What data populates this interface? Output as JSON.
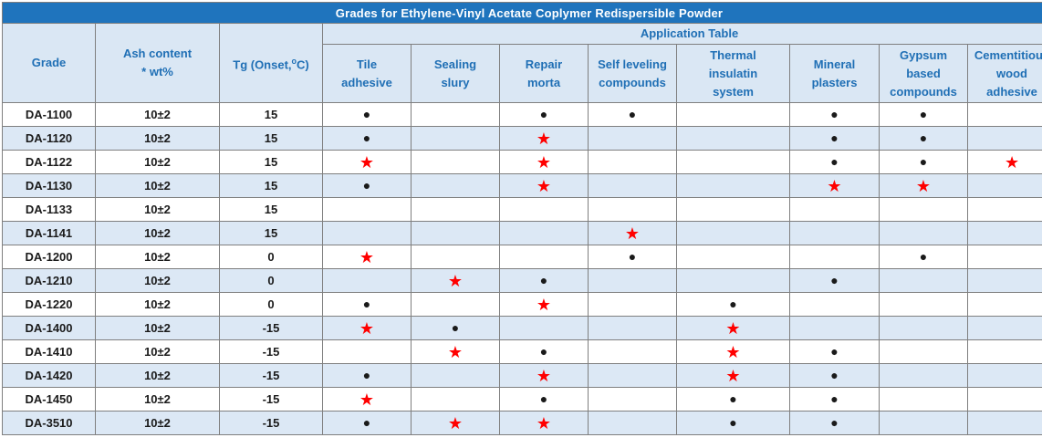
{
  "title": "Grades for Ethylene-Vinyl Acetate Coplymer Redispersible Powder",
  "headers": {
    "grade": "Grade",
    "ash_line1": "Ash content",
    "ash_line2": "* wt%",
    "tg": "Tg (Onset,",
    "tg_sup": "o",
    "tg_end": "C)",
    "application_table": "Application Table"
  },
  "applications": [
    [
      "Tile",
      "adhesive"
    ],
    [
      "Sealing",
      "slury"
    ],
    [
      "Repair",
      "morta"
    ],
    [
      "Self leveling",
      "compounds"
    ],
    [
      "Thermal",
      "insulatin",
      "system"
    ],
    [
      "Mineral",
      "plasters"
    ],
    [
      "Gypsum",
      "based",
      "compounds"
    ],
    [
      "Cementitious",
      "wood",
      "adhesive"
    ]
  ],
  "legend_symbols": {
    "dot": "●",
    "star": "★"
  },
  "colors": {
    "title_bg": "#1f74bd",
    "header_bg": "#dae7f4",
    "header_text": "#1f6fb5",
    "stripe": "#dce8f5",
    "star": "#ff0000"
  },
  "rows": [
    {
      "grade": "DA-1100",
      "ash": "10±2",
      "tg": "15",
      "apps": [
        "dot",
        "",
        "dot",
        "dot",
        "",
        "dot",
        "dot",
        ""
      ]
    },
    {
      "grade": "DA-1120",
      "ash": "10±2",
      "tg": "15",
      "apps": [
        "dot",
        "",
        "star",
        "",
        "",
        "dot",
        "dot",
        ""
      ]
    },
    {
      "grade": "DA-1122",
      "ash": "10±2",
      "tg": "15",
      "apps": [
        "star",
        "",
        "star",
        "",
        "",
        "dot",
        "dot",
        "star"
      ]
    },
    {
      "grade": "DA-1130",
      "ash": "10±2",
      "tg": "15",
      "apps": [
        "dot",
        "",
        "star",
        "",
        "",
        "star",
        "star",
        ""
      ]
    },
    {
      "grade": "DA-1133",
      "ash": "10±2",
      "tg": "15",
      "apps": [
        "",
        "",
        "",
        "",
        "",
        "",
        "",
        ""
      ]
    },
    {
      "grade": "DA-1141",
      "ash": "10±2",
      "tg": "15",
      "apps": [
        "",
        "",
        "",
        "star",
        "",
        "",
        "",
        ""
      ]
    },
    {
      "grade": "DA-1200",
      "ash": "10±2",
      "tg": "0",
      "apps": [
        "star",
        "",
        "",
        "dot",
        "",
        "",
        "dot",
        ""
      ]
    },
    {
      "grade": "DA-1210",
      "ash": "10±2",
      "tg": "0",
      "apps": [
        "",
        "star",
        "dot",
        "",
        "",
        "dot",
        "",
        ""
      ]
    },
    {
      "grade": "DA-1220",
      "ash": "10±2",
      "tg": "0",
      "apps": [
        "dot",
        "",
        "star",
        "",
        "dot",
        "",
        "",
        ""
      ]
    },
    {
      "grade": "DA-1400",
      "ash": "10±2",
      "tg": "-15",
      "apps": [
        "star",
        "dot",
        "",
        "",
        "star",
        "",
        "",
        ""
      ]
    },
    {
      "grade": "DA-1410",
      "ash": "10±2",
      "tg": "-15",
      "apps": [
        "",
        "star",
        "dot",
        "",
        "star",
        "dot",
        "",
        ""
      ]
    },
    {
      "grade": "DA-1420",
      "ash": "10±2",
      "tg": "-15",
      "apps": [
        "dot",
        "",
        "star",
        "",
        "star",
        "dot",
        "",
        ""
      ]
    },
    {
      "grade": "DA-1450",
      "ash": "10±2",
      "tg": "-15",
      "apps": [
        "star",
        "",
        "dot",
        "",
        "dot",
        "dot",
        "",
        ""
      ]
    },
    {
      "grade": "DA-3510",
      "ash": "10±2",
      "tg": "-15",
      "apps": [
        "dot",
        "star",
        "star",
        "",
        "dot",
        "dot",
        "",
        ""
      ]
    }
  ]
}
